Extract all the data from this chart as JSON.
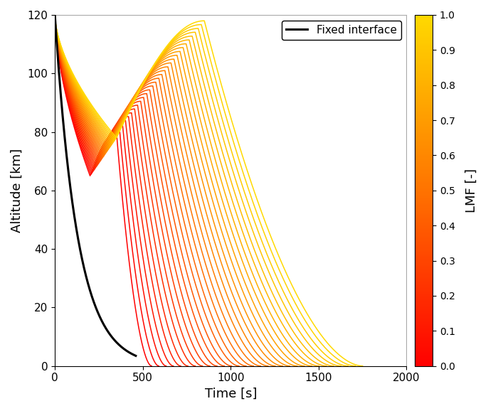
{
  "title": "",
  "xlabel": "Time [s]",
  "ylabel": "Altitude [km]",
  "colorbar_label": "LMF [-]",
  "xlim": [
    0,
    2000
  ],
  "ylim": [
    0,
    120
  ],
  "xticks": [
    0,
    500,
    1000,
    1500,
    2000
  ],
  "yticks": [
    0,
    20,
    40,
    60,
    80,
    100,
    120
  ],
  "n_curves": 30,
  "lmf_values": [
    0.0,
    0.034,
    0.069,
    0.103,
    0.138,
    0.172,
    0.207,
    0.241,
    0.276,
    0.31,
    0.345,
    0.379,
    0.414,
    0.448,
    0.483,
    0.517,
    0.552,
    0.586,
    0.621,
    0.655,
    0.69,
    0.724,
    0.759,
    0.793,
    0.828,
    0.862,
    0.897,
    0.931,
    0.966,
    1.0
  ],
  "legend_label": "Fixed interface",
  "background_color": "#ffffff",
  "figsize": [
    6.93,
    5.78
  ],
  "dpi": 100
}
